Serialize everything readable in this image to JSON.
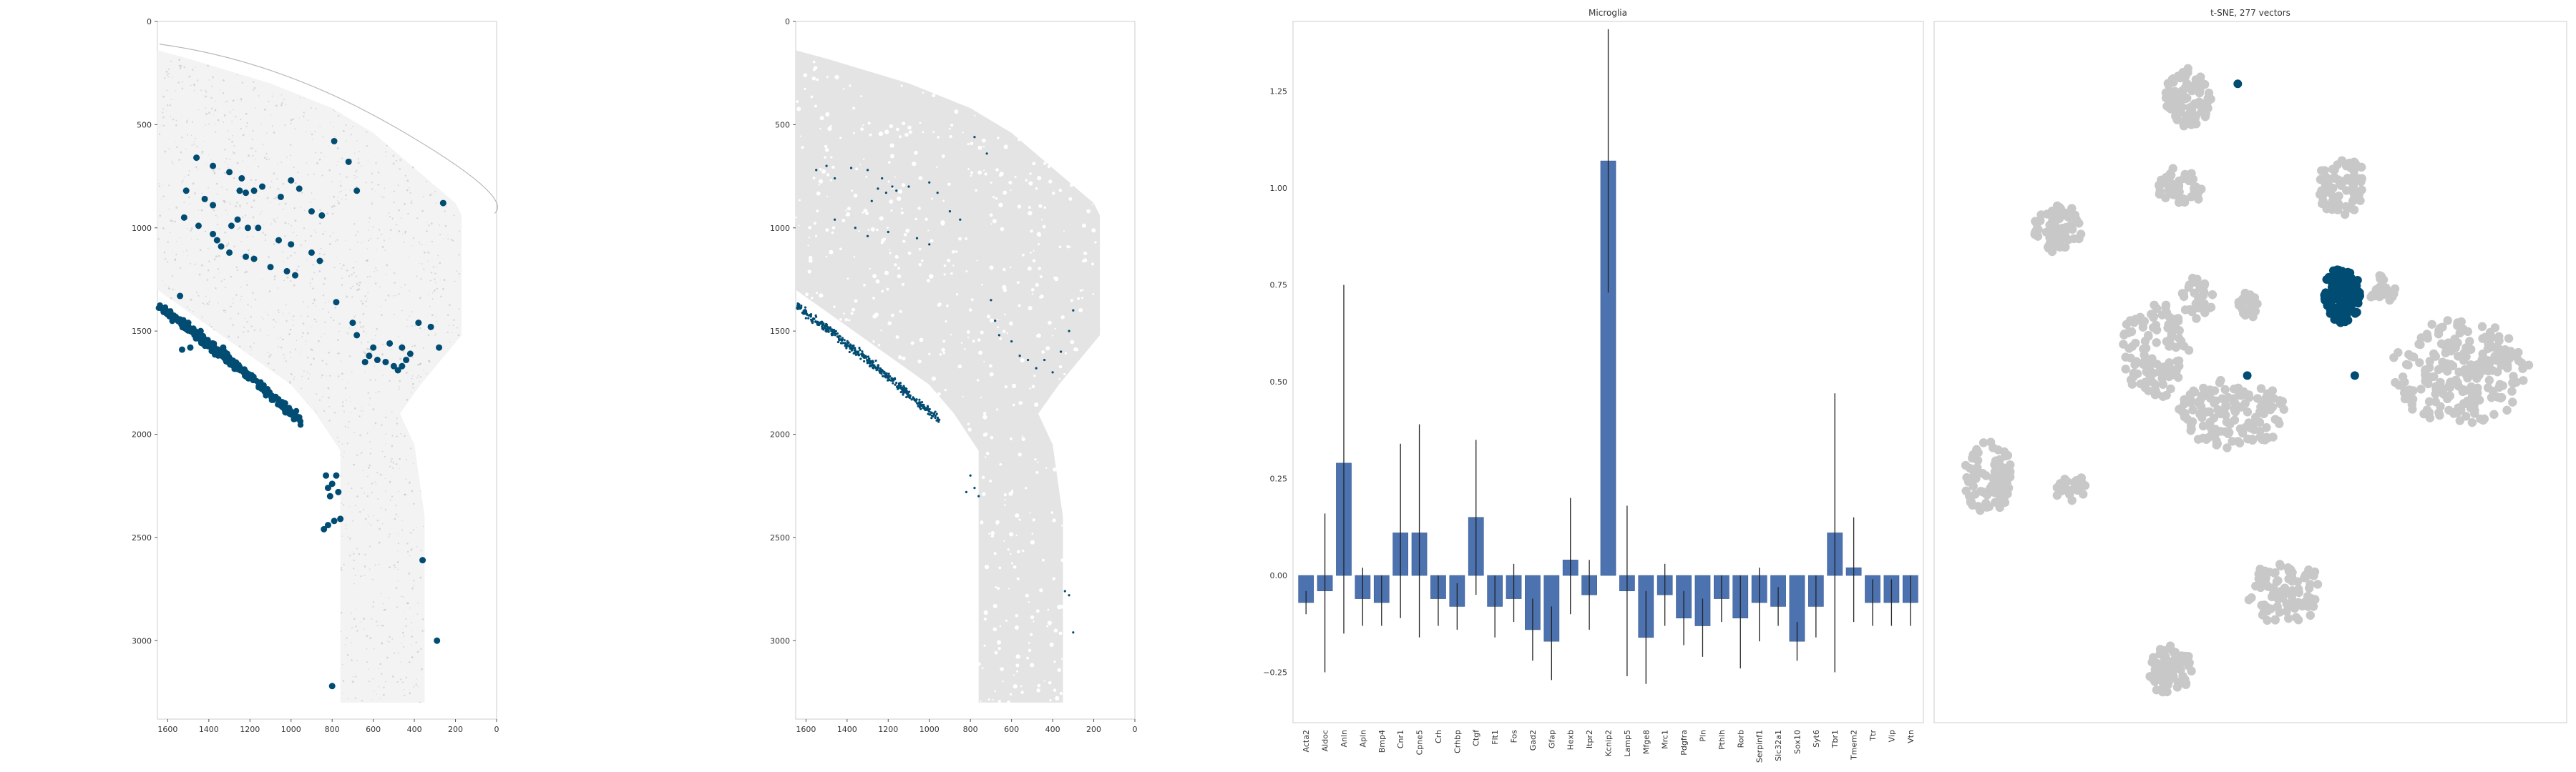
{
  "colors": {
    "background": "#ffffff",
    "tissue": "#e4e4e4",
    "highlight": "#004c73",
    "bar": "#4c72b0",
    "tsne_gray": "#c8c8c8",
    "frame": "#cccccc",
    "errorbar": "#222222"
  },
  "chart_data": [
    {
      "type": "scatter",
      "panel": "left-spatial",
      "title": "",
      "xlabel": "",
      "ylabel": "",
      "xlim": [
        1650,
        0
      ],
      "ylim": [
        3380,
        0
      ],
      "x_ticks": [
        1600,
        1400,
        1200,
        1000,
        800,
        600,
        400,
        200,
        0
      ],
      "y_ticks": [
        0,
        500,
        1000,
        1500,
        2000,
        2500,
        3000
      ],
      "background": "grayscale tissue image",
      "series": [
        {
          "name": "microglia (enlarged dots)",
          "points": [
            [
              1460,
              660
            ],
            [
              1380,
              700
            ],
            [
              1300,
              730
            ],
            [
              1240,
              760
            ],
            [
              1510,
              820
            ],
            [
              1420,
              860
            ],
            [
              1380,
              890
            ],
            [
              1250,
              820
            ],
            [
              1220,
              830
            ],
            [
              1180,
              820
            ],
            [
              1140,
              800
            ],
            [
              1050,
              850
            ],
            [
              1000,
              770
            ],
            [
              960,
              810
            ],
            [
              900,
              920
            ],
            [
              850,
              940
            ],
            [
              790,
              580
            ],
            [
              720,
              680
            ],
            [
              680,
              820
            ],
            [
              1260,
              960
            ],
            [
              1290,
              990
            ],
            [
              1210,
              1000
            ],
            [
              1160,
              1000
            ],
            [
              1060,
              1060
            ],
            [
              1000,
              1080
            ],
            [
              900,
              1120
            ],
            [
              860,
              1160
            ],
            [
              1520,
              950
            ],
            [
              1450,
              990
            ],
            [
              1380,
              1030
            ],
            [
              1360,
              1060
            ],
            [
              1340,
              1090
            ],
            [
              1300,
              1120
            ],
            [
              1220,
              1140
            ],
            [
              1180,
              1150
            ],
            [
              1100,
              1190
            ],
            [
              1020,
              1210
            ],
            [
              980,
              1230
            ],
            [
              1540,
              1330
            ],
            [
              1500,
              1460
            ],
            [
              1440,
              1500
            ],
            [
              1380,
              1560
            ],
            [
              1330,
              1580
            ],
            [
              1530,
              1590
            ],
            [
              1490,
              1580
            ],
            [
              1420,
              1540
            ],
            [
              780,
              1360
            ],
            [
              700,
              1460
            ],
            [
              680,
              1520
            ],
            [
              620,
              1620
            ],
            [
              580,
              1640
            ],
            [
              540,
              1650
            ],
            [
              500,
              1670
            ],
            [
              480,
              1690
            ],
            [
              460,
              1670
            ],
            [
              440,
              1640
            ],
            [
              420,
              1610
            ],
            [
              460,
              1580
            ],
            [
              520,
              1560
            ],
            [
              600,
              1580
            ],
            [
              640,
              1650
            ],
            [
              380,
              1460
            ],
            [
              320,
              1480
            ],
            [
              280,
              1580
            ],
            [
              260,
              880
            ],
            [
              830,
              2200
            ],
            [
              780,
              2200
            ],
            [
              800,
              2240
            ],
            [
              820,
              2260
            ],
            [
              770,
              2280
            ],
            [
              810,
              2300
            ],
            [
              760,
              2410
            ],
            [
              790,
              2420
            ],
            [
              820,
              2440
            ],
            [
              840,
              2460
            ],
            [
              360,
              2610
            ],
            [
              290,
              3000
            ],
            [
              800,
              3220
            ]
          ]
        },
        {
          "name": "microglia band",
          "points": "dense band from (1640,1380) to (950,1910)"
        }
      ]
    },
    {
      "type": "scatter",
      "panel": "mid-spatial",
      "title": "",
      "xlabel": "",
      "ylabel": "",
      "xlim": [
        1650,
        0
      ],
      "ylim": [
        3380,
        0
      ],
      "x_ticks": [
        1600,
        1400,
        1200,
        1000,
        800,
        600,
        400,
        200,
        0
      ],
      "y_ticks": [
        0,
        500,
        1000,
        1500,
        2000,
        2500,
        3000
      ],
      "background": "light gray segmented tissue",
      "series": [
        {
          "name": "microglia (small dots)",
          "points": [
            [
              1550,
              720
            ],
            [
              1500,
              700
            ],
            [
              1460,
              760
            ],
            [
              1380,
              710
            ],
            [
              1300,
              720
            ],
            [
              1230,
              760
            ],
            [
              1180,
              800
            ],
            [
              1160,
              820
            ],
            [
              1100,
              800
            ],
            [
              1210,
              830
            ],
            [
              1250,
              810
            ],
            [
              1280,
              870
            ],
            [
              1000,
              780
            ],
            [
              960,
              830
            ],
            [
              900,
              920
            ],
            [
              850,
              960
            ],
            [
              780,
              560
            ],
            [
              720,
              640
            ],
            [
              1460,
              960
            ],
            [
              1360,
              1000
            ],
            [
              1300,
              1040
            ],
            [
              1200,
              1020
            ],
            [
              1060,
              1050
            ],
            [
              1000,
              1080
            ],
            [
              700,
              1350
            ],
            [
              680,
              1450
            ],
            [
              660,
              1520
            ],
            [
              600,
              1550
            ],
            [
              560,
              1620
            ],
            [
              520,
              1640
            ],
            [
              480,
              1680
            ],
            [
              440,
              1640
            ],
            [
              400,
              1700
            ],
            [
              360,
              1600
            ],
            [
              320,
              1500
            ],
            [
              300,
              1400
            ],
            [
              340,
              2760
            ],
            [
              320,
              2780
            ],
            [
              300,
              2960
            ],
            [
              800,
              2200
            ],
            [
              780,
              2260
            ],
            [
              820,
              2280
            ],
            [
              760,
              2300
            ]
          ]
        },
        {
          "name": "microglia band",
          "points": "dense band from (1640,1390) to (950,1900)"
        }
      ]
    },
    {
      "type": "bar",
      "panel": "bar",
      "title": "Microglia",
      "xlabel": "",
      "ylabel": "",
      "ylim": [
        -0.38,
        1.43
      ],
      "y_ticks": [
        -0.25,
        0.0,
        0.25,
        0.5,
        0.75,
        1.0,
        1.25
      ],
      "y_tick_labels": [
        "−0.25",
        "0.00",
        "0.25",
        "0.50",
        "0.75",
        "1.00",
        "1.25"
      ],
      "categories": [
        "Acta2",
        "Aldoc",
        "Anln",
        "Apln",
        "Bmp4",
        "Cnr1",
        "Cpne5",
        "Crh",
        "Crhbp",
        "Ctgf",
        "Flt1",
        "Fos",
        "Gad2",
        "Gfap",
        "Hexb",
        "Itpr2",
        "Kcnip2",
        "Lamp5",
        "Mfge8",
        "Mrc1",
        "Pdgfra",
        "Pln",
        "Pthlh",
        "Rorb",
        "Serpinf1",
        "Slc32a1",
        "Sox10",
        "Syt6",
        "Tbr1",
        "Tmem2",
        "Ttr",
        "Vip",
        "Vtn"
      ],
      "values": [
        -0.07,
        -0.04,
        0.29,
        -0.06,
        -0.07,
        0.11,
        0.11,
        -0.06,
        -0.08,
        0.15,
        -0.08,
        -0.06,
        -0.14,
        -0.17,
        0.04,
        -0.05,
        1.07,
        -0.04,
        -0.16,
        -0.05,
        -0.11,
        -0.13,
        -0.06,
        -0.11,
        -0.07,
        -0.08,
        -0.17,
        -0.08,
        0.11,
        0.02,
        -0.07,
        -0.07,
        -0.07
      ],
      "error_low": [
        -0.1,
        -0.25,
        -0.15,
        -0.13,
        -0.13,
        -0.11,
        -0.16,
        -0.13,
        -0.14,
        -0.05,
        -0.16,
        -0.12,
        -0.22,
        -0.27,
        -0.1,
        -0.14,
        0.73,
        -0.26,
        -0.28,
        -0.13,
        -0.18,
        -0.21,
        -0.12,
        -0.24,
        -0.17,
        -0.13,
        -0.22,
        -0.16,
        -0.25,
        -0.12,
        -0.13,
        -0.13,
        -0.13
      ],
      "error_high": [
        -0.04,
        0.16,
        0.75,
        0.02,
        0.0,
        0.34,
        0.39,
        0.0,
        -0.02,
        0.35,
        0.0,
        0.03,
        -0.06,
        -0.08,
        0.2,
        0.04,
        1.41,
        0.18,
        -0.04,
        0.03,
        -0.04,
        -0.06,
        0.0,
        0.0,
        0.02,
        -0.03,
        -0.12,
        0.0,
        0.47,
        0.15,
        -0.01,
        -0.01,
        0.0
      ]
    },
    {
      "type": "scatter",
      "panel": "tsne",
      "title": "t-SNE, 277 vectors",
      "xlabel": "",
      "ylabel": "",
      "axes": "hidden",
      "xlim": [
        0,
        100
      ],
      "ylim": [
        0,
        100
      ],
      "series": [
        {
          "name": "all vectors (gray clusters)",
          "clusters": [
            {
              "center": [
                40,
                11
              ],
              "rx": 3.8,
              "ry": 4.2,
              "n": 100
            },
            {
              "center": [
                64.5,
                23.5
              ],
              "rx": 3.8,
              "ry": 4.2,
              "n": 80
            },
            {
              "center": [
                39,
                23.5
              ],
              "rx": 3.5,
              "ry": 2.5,
              "n": 50
            },
            {
              "center": [
                19.5,
                29.5
              ],
              "rx": 3.8,
              "ry": 3.5,
              "n": 70
            },
            {
              "center": [
                41.5,
                39.5
              ],
              "rx": 2.5,
              "ry": 3.5,
              "n": 35
            },
            {
              "center": [
                49.5,
                40.5
              ],
              "rx": 1.8,
              "ry": 2.0,
              "n": 20
            },
            {
              "center": [
                71,
                38
              ],
              "rx": 2.5,
              "ry": 2.0,
              "n": 20
            },
            {
              "center": [
                35,
                47
              ],
              "rx": 5.5,
              "ry": 7.0,
              "n": 110
            },
            {
              "center": [
                47,
                56
              ],
              "rx": 8.5,
              "ry": 5.0,
              "n": 140
            },
            {
              "center": [
                83,
                50
              ],
              "rx": 11,
              "ry": 7.5,
              "n": 220
            },
            {
              "center": [
                8.5,
                65
              ],
              "rx": 4.0,
              "ry": 5.0,
              "n": 90
            },
            {
              "center": [
                21.5,
                66.5
              ],
              "rx": 2.5,
              "ry": 2.0,
              "n": 25
            },
            {
              "center": [
                55.5,
                81.5
              ],
              "rx": 6.0,
              "ry": 4.5,
              "n": 90
            },
            {
              "center": [
                37.5,
                92.5
              ],
              "rx": 3.5,
              "ry": 3.5,
              "n": 70
            }
          ]
        },
        {
          "name": "selected (Microglia)",
          "points": [
            [
              48,
              8.9
            ],
            [
              49.5,
              50.5
            ],
            [
              66.5,
              50.5
            ]
          ],
          "cluster": {
            "center": [
              64.5,
              39
            ],
            "rx": 3.0,
            "ry": 4.0,
            "n": 120
          }
        }
      ]
    }
  ]
}
